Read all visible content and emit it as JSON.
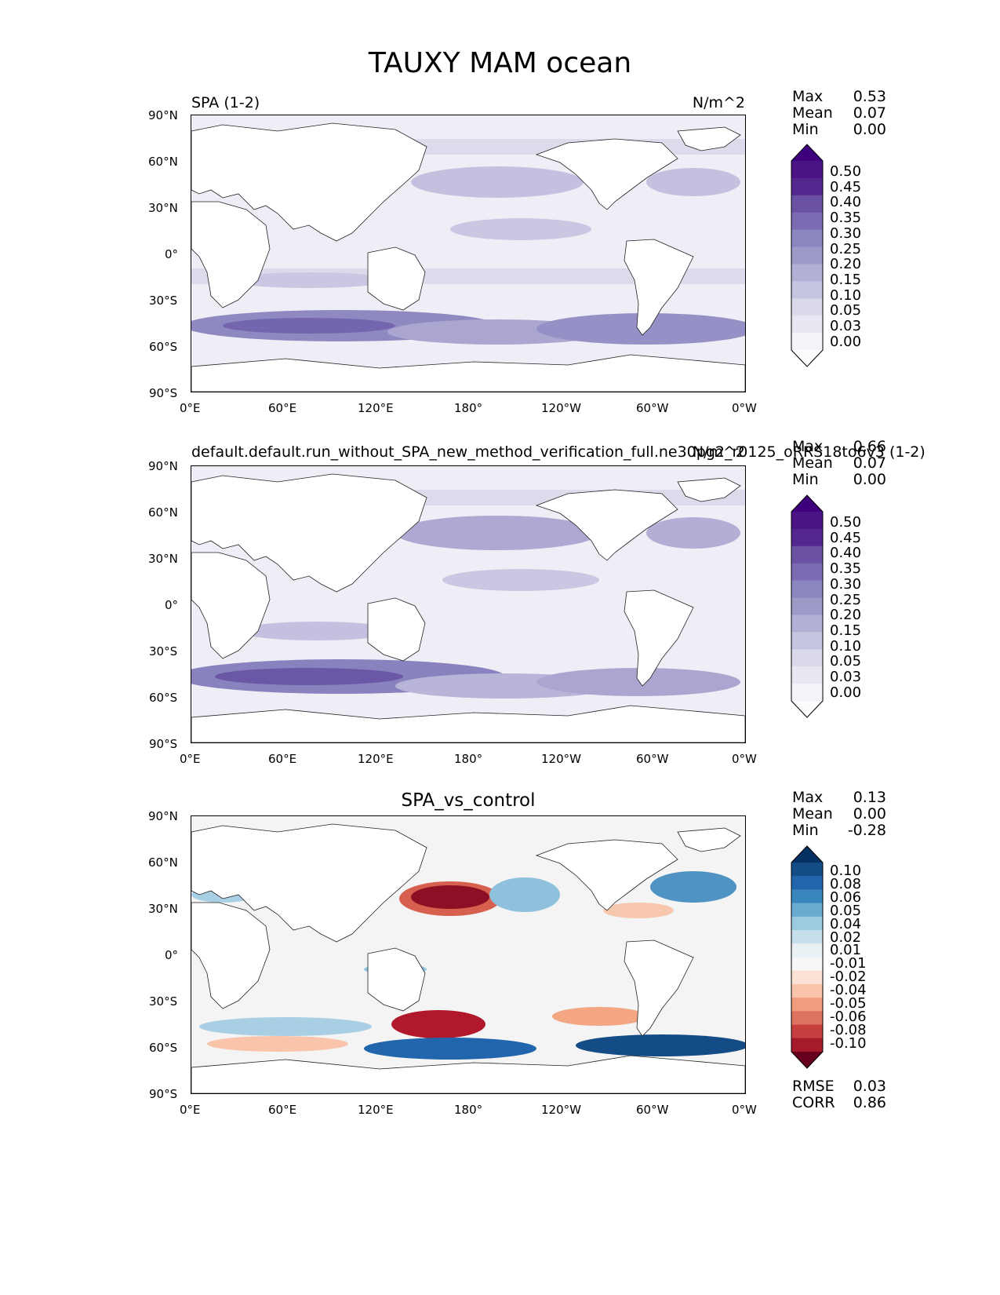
{
  "figure_title": "TAUXY MAM ocean",
  "panels": [
    {
      "title_left": "SPA (1-2)",
      "title_right": "N/m^2",
      "title_center": "",
      "stats": [
        {
          "label": "Max",
          "value": "0.53"
        },
        {
          "label": "Mean",
          "value": "0.07"
        },
        {
          "label": "Min",
          "value": "0.00"
        }
      ],
      "colorbar": {
        "cmap": "Purples",
        "levels": [
          "0.50",
          "0.45",
          "0.40",
          "0.35",
          "0.30",
          "0.25",
          "0.20",
          "0.15",
          "0.10",
          "0.05",
          "0.03",
          "0.00"
        ],
        "colors": [
          "#3f007d",
          "#4a1486",
          "#54278f",
          "#6a51a3",
          "#7b6bb3",
          "#8c86c0",
          "#9e9ac8",
          "#b3b0d5",
          "#c6c5e1",
          "#dadaeb",
          "#e8e7f2",
          "#f4f3f8",
          "#fcfbfd"
        ]
      }
    },
    {
      "title_left": "default.default.run_without_SPA_new_method_verification_full.ne30pg2_r0125_oRRS18to6v3 (1-2)",
      "title_right": "N/m^2",
      "title_center": "",
      "stats": [
        {
          "label": "Max",
          "value": "0.66"
        },
        {
          "label": "Mean",
          "value": "0.07"
        },
        {
          "label": "Min",
          "value": "0.00"
        }
      ],
      "colorbar": {
        "cmap": "Purples",
        "levels": [
          "0.50",
          "0.45",
          "0.40",
          "0.35",
          "0.30",
          "0.25",
          "0.20",
          "0.15",
          "0.10",
          "0.05",
          "0.03",
          "0.00"
        ],
        "colors": [
          "#3f007d",
          "#4a1486",
          "#54278f",
          "#6a51a3",
          "#7b6bb3",
          "#8c86c0",
          "#9e9ac8",
          "#b3b0d5",
          "#c6c5e1",
          "#dadaeb",
          "#e8e7f2",
          "#f4f3f8",
          "#fcfbfd"
        ]
      }
    },
    {
      "title_left": "",
      "title_right": "",
      "title_center": "SPA_vs_control",
      "stats": [
        {
          "label": "Max",
          "value": "0.13"
        },
        {
          "label": "Mean",
          "value": "0.00"
        },
        {
          "label": "Min",
          "value": "-0.28"
        }
      ],
      "bottom_stats": [
        {
          "label": "RMSE",
          "value": "0.03"
        },
        {
          "label": "CORR",
          "value": "0.86"
        }
      ],
      "colorbar": {
        "cmap": "RdBu",
        "levels": [
          "0.10",
          "0.08",
          "0.06",
          "0.05",
          "0.04",
          "0.02",
          "0.01",
          "-0.01",
          "-0.02",
          "-0.04",
          "-0.05",
          "-0.06",
          "-0.08",
          "-0.10"
        ],
        "colors": [
          "#053061",
          "#134c87",
          "#2166ac",
          "#3a87bd",
          "#6aabd1",
          "#9ccae1",
          "#c7dfec",
          "#eaf1f5",
          "#f7f7f7",
          "#fbe2d4",
          "#f9c4a9",
          "#f09d7d",
          "#de7261",
          "#c63f3e",
          "#a61b2c",
          "#67001f"
        ]
      }
    }
  ],
  "y_ticks": [
    "90°N",
    "60°N",
    "30°N",
    "0°",
    "30°S",
    "60°S",
    "90°S"
  ],
  "x_ticks": [
    "0°E",
    "60°E",
    "120°E",
    "180°",
    "120°W",
    "60°W",
    "0°W"
  ],
  "colors": {
    "land": "#ffffff",
    "coast": "#222222",
    "purple_low": "#f4f3f8",
    "purple_mid": "#b9b6d8",
    "purple_high": "#7b6bb3",
    "red_strong": "#a61b2c",
    "red_light": "#f3b59a",
    "blue_strong": "#1d5fa3",
    "blue_light": "#a9cfe5",
    "neutral": "#f4f4f4"
  }
}
